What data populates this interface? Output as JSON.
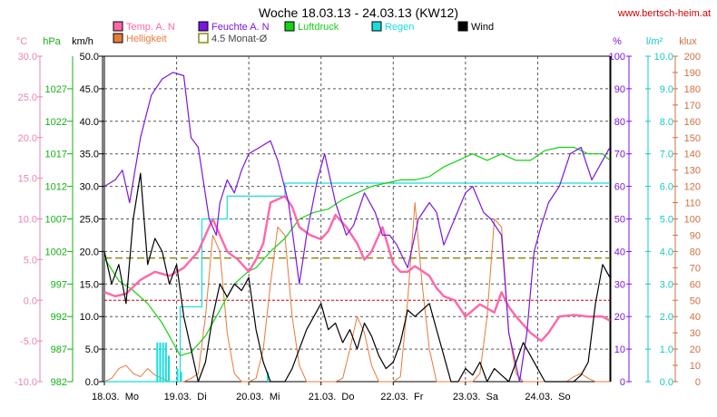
{
  "chart_data": {
    "type": "line",
    "title": "Woche 18.03.13 - 24.03.13 (KW12)",
    "source": "www.bertsch-heim.at",
    "colors": {
      "temp": "#ff66aa",
      "humidity": "#7b16e0",
      "pressure": "#14d214",
      "rain": "#16dede",
      "wind": "#000000",
      "brightness": "#e87a3c",
      "avg": "#8a8a1a",
      "ref_red": "#d20000"
    },
    "legend": [
      {
        "key": "temp",
        "label": "Temp. A. N"
      },
      {
        "key": "humidity",
        "label": "Feuchte A. N"
      },
      {
        "key": "pressure",
        "label": "Luftdruck"
      },
      {
        "key": "rain",
        "label": "Regen"
      },
      {
        "key": "wind",
        "label": "Wind"
      },
      {
        "key": "brightness",
        "label": "Helligkeit"
      },
      {
        "key": "avg",
        "label": "4.5 Monat-Ø"
      }
    ],
    "axes_units": {
      "temp": "°C",
      "pressure": "hPa",
      "wind": "km/h",
      "humidity": "%",
      "rain": "l/m²",
      "brightness": "klux"
    },
    "axes": {
      "temp": {
        "min": -10,
        "max": 30,
        "ticks": [
          "30.0",
          "25.0",
          "20.0",
          "15.0",
          "10.0",
          "5.0",
          "0.0",
          "-5.0",
          "-10.0"
        ]
      },
      "pressure": {
        "min": 982,
        "max": 1032,
        "ticks": [
          "1027",
          "1022",
          "1017",
          "1012",
          "1007",
          "1002",
          "997",
          "992",
          "987",
          "982"
        ]
      },
      "wind": {
        "min": 0,
        "max": 50,
        "ticks": [
          "50.0",
          "45.0",
          "40.0",
          "35.0",
          "30.0",
          "25.0",
          "20.0",
          "15.0",
          "10.0",
          "5.0",
          "0.0"
        ]
      },
      "humidity": {
        "min": 0,
        "max": 100,
        "ticks": [
          "100",
          "90",
          "80",
          "70",
          "60",
          "50",
          "40",
          "30",
          "20",
          "10",
          "0"
        ]
      },
      "rain": {
        "min": 0,
        "max": 10,
        "ticks": [
          "10.0",
          "9.0",
          "8.0",
          "7.0",
          "6.0",
          "5.0",
          "4.0",
          "3.0",
          "2.0",
          "1.0",
          "0.0"
        ]
      },
      "brightness": {
        "min": 0,
        "max": 200,
        "ticks": [
          "200",
          "190",
          "180",
          "170",
          "160",
          "150",
          "140",
          "130",
          "120",
          "110",
          "100",
          "90",
          "80",
          "70",
          "60",
          "50",
          "40",
          "30",
          "20",
          "10",
          "0"
        ]
      }
    },
    "x_labels": [
      "18.03.  Mo",
      "19.03.  Di",
      "20.03.  Mi",
      "21.03.  Do",
      "22.03.  Fr",
      "23.03.  Sa",
      "24.03.  So"
    ],
    "x_range_days": [
      0,
      7
    ],
    "ref_lines": {
      "temp_zero": 0,
      "avg_temp": 5.2
    },
    "series": [
      {
        "name": "Temp. A. N",
        "key": "temp",
        "axis": "temp",
        "x": [
          0,
          0.15,
          0.3,
          0.5,
          0.7,
          0.9,
          1.1,
          1.3,
          1.5,
          1.6,
          1.7,
          1.85,
          2.0,
          2.1,
          2.2,
          2.3,
          2.5,
          2.6,
          2.7,
          2.85,
          3.0,
          3.1,
          3.2,
          3.35,
          3.5,
          3.6,
          3.7,
          3.85,
          4.0,
          4.1,
          4.2,
          4.3,
          4.5,
          4.6,
          4.7,
          4.85,
          5.0,
          5.2,
          5.4,
          5.5,
          5.6,
          5.7,
          5.9,
          6.05,
          6.15,
          6.3,
          6.5,
          6.7,
          6.9,
          7.0
        ],
        "values": [
          1.0,
          0.5,
          0.8,
          2.5,
          3.5,
          3.0,
          4.0,
          6.0,
          10.0,
          8.0,
          6.0,
          5.0,
          3.5,
          5.0,
          7.0,
          12.0,
          12.8,
          11.5,
          9.0,
          8.0,
          7.5,
          8.5,
          10.5,
          9.0,
          7.0,
          5.0,
          6.0,
          9.0,
          4.5,
          3.5,
          3.5,
          4.2,
          3.0,
          1.5,
          0.5,
          0.0,
          -2.0,
          -0.5,
          -1.5,
          1.0,
          -0.8,
          -2.0,
          -4.0,
          -5.0,
          -4.0,
          -2.0,
          -1.8,
          -2.0,
          -2.0,
          -2.5
        ]
      },
      {
        "name": "Feuchte A. N",
        "key": "humidity",
        "axis": "humidity",
        "x": [
          0,
          0.15,
          0.25,
          0.35,
          0.5,
          0.65,
          0.8,
          0.95,
          1.1,
          1.2,
          1.3,
          1.45,
          1.55,
          1.6,
          1.7,
          1.8,
          1.9,
          2.0,
          2.15,
          2.3,
          2.4,
          2.55,
          2.7,
          2.8,
          2.95,
          3.05,
          3.2,
          3.35,
          3.45,
          3.6,
          3.75,
          3.85,
          3.95,
          4.05,
          4.2,
          4.35,
          4.5,
          4.6,
          4.7,
          4.85,
          5.0,
          5.1,
          5.25,
          5.35,
          5.5,
          5.6,
          5.7,
          5.75,
          5.85,
          5.95,
          6.05,
          6.15,
          6.3,
          6.45,
          6.6,
          6.75,
          6.9,
          7.0
        ],
        "values": [
          60,
          62,
          65,
          55,
          75,
          88,
          93,
          95,
          94,
          75,
          72,
          50,
          45,
          55,
          62,
          58,
          65,
          70,
          72,
          74,
          68,
          55,
          30,
          45,
          62,
          70,
          55,
          45,
          48,
          58,
          52,
          45,
          45,
          42,
          35,
          50,
          55,
          52,
          42,
          50,
          58,
          60,
          52,
          50,
          45,
          15,
          5,
          0,
          15,
          40,
          48,
          55,
          60,
          70,
          72,
          62,
          68,
          72
        ]
      },
      {
        "name": "Luftdruck",
        "key": "pressure",
        "axis": "pressure",
        "x": [
          0,
          0.2,
          0.4,
          0.6,
          0.8,
          0.95,
          1.05,
          1.2,
          1.4,
          1.6,
          1.8,
          2.0,
          2.1,
          2.3,
          2.5,
          2.7,
          2.9,
          3.1,
          3.3,
          3.5,
          3.7,
          3.9,
          4.1,
          4.3,
          4.5,
          4.7,
          4.9,
          5.1,
          5.3,
          5.5,
          5.7,
          5.9,
          6.1,
          6.3,
          6.5,
          6.7,
          6.9,
          7.0
        ],
        "values": [
          1001,
          997.5,
          996,
          994,
          991,
          988,
          986,
          986.5,
          989,
          993,
          997,
          999,
          999.5,
          1002,
          1004,
          1007,
          1008,
          1008.5,
          1010,
          1011,
          1012,
          1012.5,
          1013,
          1013,
          1013.5,
          1015,
          1016,
          1017,
          1016,
          1017,
          1016,
          1016,
          1017.5,
          1018,
          1018,
          1017,
          1017,
          1016
        ]
      },
      {
        "name": "Regen",
        "key": "rain",
        "axis": "rain",
        "x": [
          0,
          1.0,
          1.05,
          1.35,
          1.55,
          1.7,
          2.5,
          3.0,
          4.0,
          5.0,
          6.0,
          7.0
        ],
        "values": [
          0,
          0,
          2.3,
          5.0,
          5.0,
          5.7,
          6.1,
          6.1,
          6.1,
          6.1,
          6.1,
          6.1
        ]
      },
      {
        "name": "Wind",
        "key": "wind",
        "axis": "wind",
        "x": [
          0,
          0.1,
          0.2,
          0.3,
          0.4,
          0.5,
          0.6,
          0.7,
          0.8,
          0.9,
          1.0,
          1.1,
          1.2,
          1.3,
          1.4,
          1.5,
          1.6,
          1.7,
          1.8,
          1.9,
          2.0,
          2.1,
          2.2,
          2.3,
          2.4,
          2.5,
          2.6,
          2.7,
          2.8,
          2.9,
          3.0,
          3.1,
          3.2,
          3.3,
          3.4,
          3.5,
          3.6,
          3.7,
          3.8,
          3.9,
          4.0,
          4.1,
          4.2,
          4.3,
          4.4,
          4.5,
          4.6,
          4.7,
          4.8,
          4.9,
          5.0,
          5.1,
          5.2,
          5.3,
          5.4,
          5.5,
          5.6,
          5.7,
          5.8,
          5.9,
          6.0,
          6.1,
          6.2,
          6.3,
          6.4,
          6.5,
          6.6,
          6.7,
          6.8,
          6.9,
          7.0
        ],
        "values": [
          20,
          15,
          18,
          12,
          25,
          32,
          18,
          22,
          20,
          15,
          18,
          10,
          5,
          0,
          3,
          10,
          15,
          13,
          15,
          14,
          16,
          8,
          3,
          0,
          0,
          0,
          2,
          5,
          8,
          10,
          12,
          8,
          9,
          6,
          8,
          5,
          9,
          7,
          4,
          2,
          3,
          6,
          11,
          10,
          11,
          12,
          8,
          4,
          0,
          0,
          2,
          1,
          3,
          0,
          2,
          1,
          0,
          3,
          6,
          4,
          2,
          0,
          0,
          0,
          0,
          0,
          1,
          3,
          12,
          18,
          16
        ]
      },
      {
        "name": "Helligkeit",
        "key": "brightness",
        "axis": "brightness",
        "x": [
          0,
          0.1,
          0.2,
          0.3,
          0.4,
          0.5,
          0.6,
          0.7,
          0.8,
          0.9,
          1.0,
          1.1,
          1.2,
          1.3,
          1.4,
          1.5,
          1.6,
          1.7,
          1.8,
          1.9,
          2.0,
          2.1,
          2.2,
          2.3,
          2.4,
          2.5,
          2.6,
          2.7,
          2.8,
          2.9,
          3.0,
          3.1,
          3.2,
          3.3,
          3.4,
          3.5,
          3.6,
          3.7,
          3.8,
          3.9,
          4.0,
          4.1,
          4.2,
          4.3,
          4.4,
          4.5,
          4.6,
          4.7,
          4.8,
          4.9,
          5.0,
          5.1,
          5.2,
          5.3,
          5.4,
          5.5,
          5.6,
          5.7,
          5.8,
          5.9,
          6.0,
          6.1,
          6.2,
          6.3,
          6.4,
          6.5,
          6.6,
          6.7,
          6.8,
          6.9,
          7.0
        ],
        "values": [
          0,
          2,
          8,
          10,
          5,
          3,
          8,
          4,
          2,
          0,
          0,
          0,
          2,
          5,
          40,
          90,
          80,
          30,
          5,
          0,
          0,
          2,
          20,
          60,
          95,
          90,
          40,
          10,
          0,
          0,
          0,
          0,
          0,
          2,
          20,
          40,
          30,
          10,
          0,
          0,
          0,
          3,
          50,
          110,
          60,
          20,
          0,
          0,
          0,
          0,
          0,
          0,
          5,
          40,
          100,
          95,
          30,
          5,
          0,
          0,
          0,
          0,
          0,
          0,
          0,
          3,
          5,
          2,
          0,
          0,
          0
        ]
      }
    ]
  }
}
